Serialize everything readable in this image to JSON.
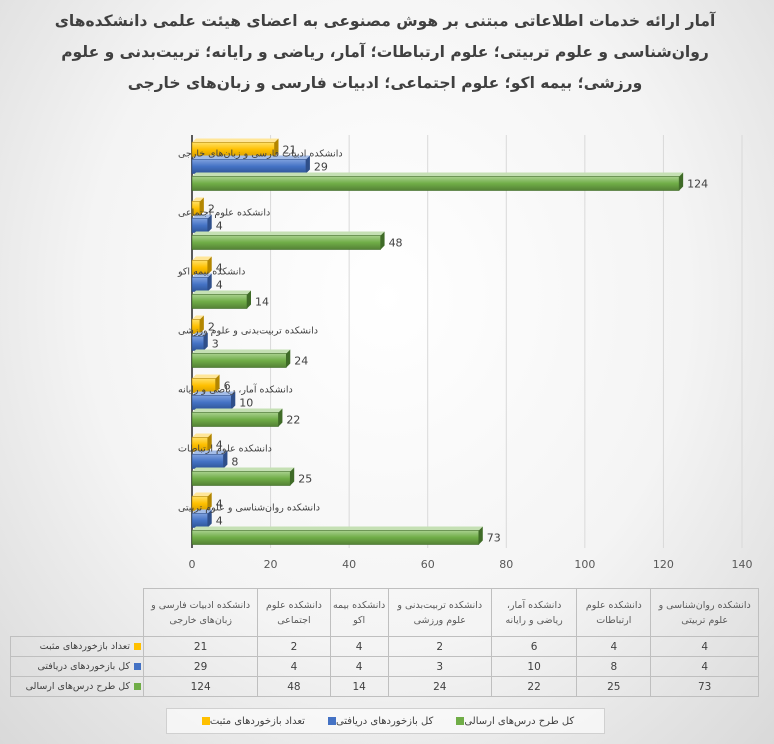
{
  "title": "آمار ارائه خدمات اطلاعاتی مبتنی بر هوش مصنوعی به اعضای هیئت علمی دانشکده‌های روان‌شناسی و علوم تربیتی؛ علوم ارتباطات؛ آمار، ریاضی و رایانه؛ تربیت‌بدنی و علوم ورزشی؛ بیمه اکو؛ علوم اجتماعی؛ ادبیات فارسی و زبان‌های خارجی",
  "chart_data": {
    "type": "bar",
    "orientation": "horizontal",
    "title": "آمار ارائه خدمات اطلاعاتی مبتنی بر هوش مصنوعی به اعضای هیئت علمی دانشکده‌های روان‌شناسی و علوم تربیتی؛ علوم ارتباطات؛ آمار، ریاضی و رایانه؛ تربیت‌بدنی و علوم ورزشی؛ بیمه اکو؛ علوم اجتماعی؛ ادبیات فارسی و زبان‌های خارجی",
    "categories": [
      "دانشکده روان‌شناسی و علوم تربیتی",
      "دانشکده علوم ارتباطات",
      "دانشکده آمار، ریاضی و رایانه",
      "دانشکده تربیت‌بدنی و علوم ورزشی",
      "دانشکده بیمه اکو",
      "دانشکده علوم اجتماعی",
      "دانشکده ادبیات فارسی و زبان‌های خارجی"
    ],
    "series": [
      {
        "name": "تعداد بازخوردهای مثبت",
        "color": "#FFC000",
        "values": [
          4,
          4,
          6,
          2,
          4,
          2,
          21
        ]
      },
      {
        "name": "کل بازخوردهای دریافتی",
        "color": "#4472C4",
        "values": [
          4,
          8,
          10,
          3,
          4,
          4,
          29
        ]
      },
      {
        "name": "کل طرح درس‌های ارسالی",
        "color": "#70AD47",
        "values": [
          73,
          25,
          22,
          24,
          14,
          48,
          124
        ]
      }
    ],
    "xlim": [
      0,
      140
    ],
    "xticks": [
      0,
      20,
      40,
      60,
      80,
      100,
      120,
      140
    ],
    "data_table": true,
    "legend_position": "bottom",
    "grid": true
  }
}
